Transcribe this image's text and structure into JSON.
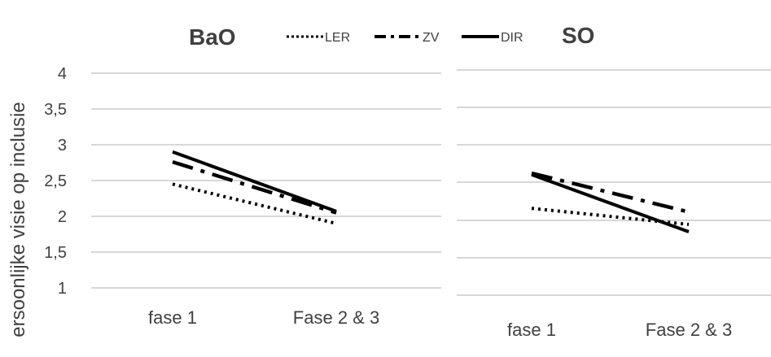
{
  "chart_data": [
    {
      "type": "line",
      "title": "BaO",
      "ylabel": "ersoonlijke visie op inclusie",
      "categories": [
        "fase 1",
        "Fase 2 & 3"
      ],
      "ylim": [
        1,
        4
      ],
      "yticks": [
        "1",
        "1,5",
        "2",
        "2,5",
        "3",
        "3,5",
        "4"
      ],
      "grid": true,
      "series": [
        {
          "name": "LER",
          "values": [
            2.45,
            1.9
          ]
        },
        {
          "name": "ZV",
          "values": [
            2.76,
            2.05
          ]
        },
        {
          "name": "DIR",
          "values": [
            2.9,
            2.07
          ]
        }
      ]
    },
    {
      "type": "line",
      "title": "SO",
      "categories": [
        "fase 1",
        "Fase 2 & 3"
      ],
      "grid": true,
      "series": [
        {
          "name": "LER",
          "values": [
            2.12,
            1.9
          ]
        },
        {
          "name": "ZV",
          "values": [
            2.6,
            2.07
          ]
        },
        {
          "name": "DIR",
          "values": [
            2.58,
            1.8
          ]
        }
      ]
    }
  ]
}
